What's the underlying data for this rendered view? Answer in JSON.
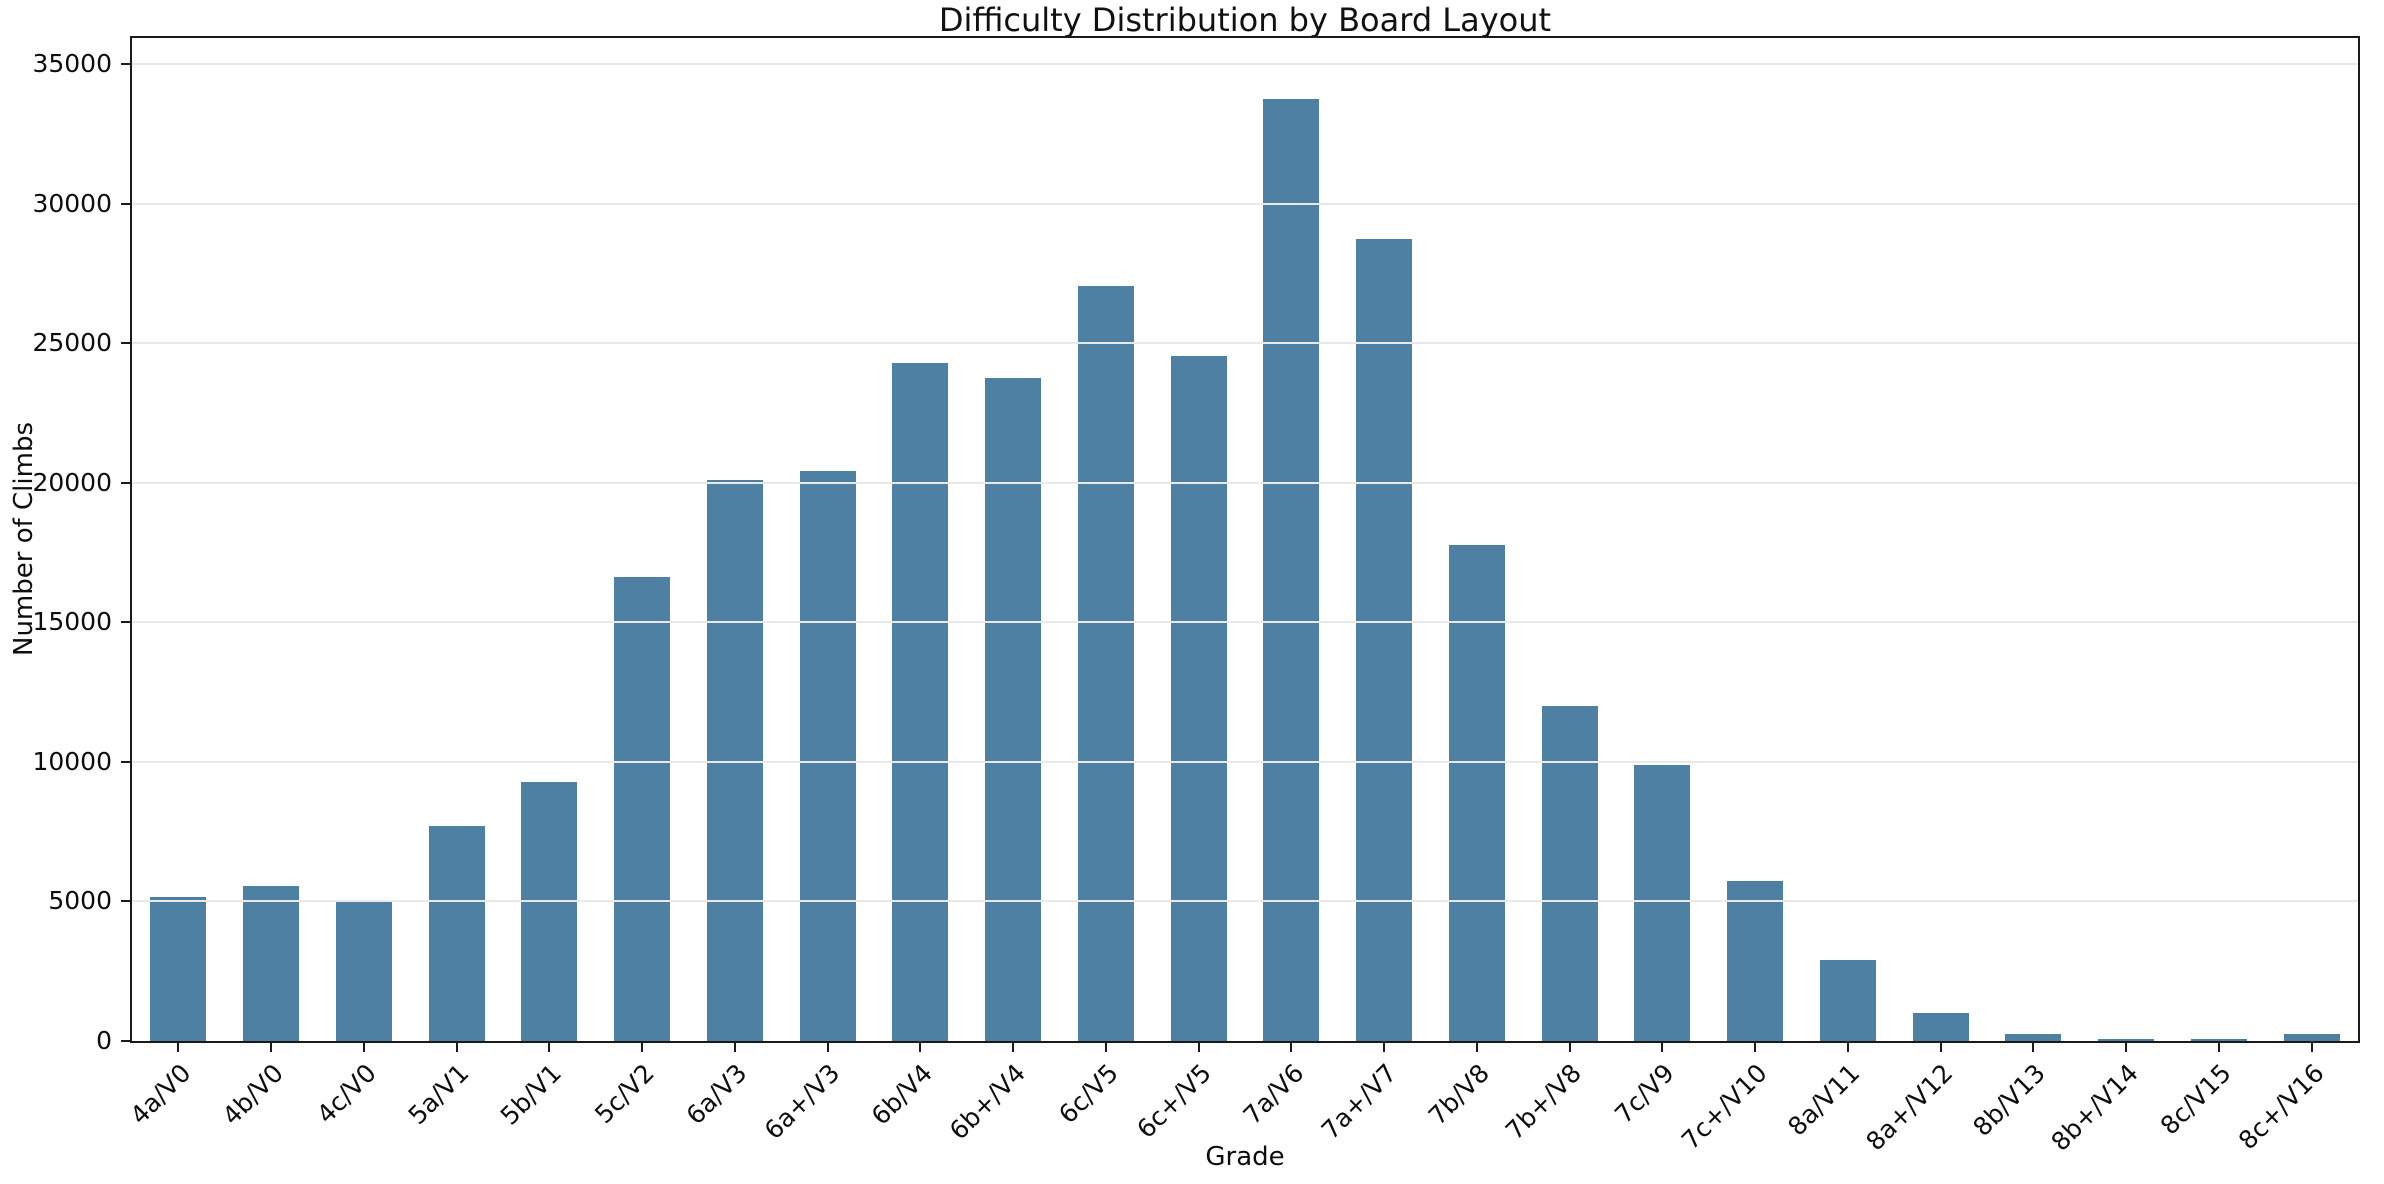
{
  "chart_data": {
    "type": "bar",
    "title": "Difficulty Distribution by Board Layout",
    "xlabel": "Grade",
    "ylabel": "Number of Climbs",
    "categories": [
      "4a/V0",
      "4b/V0",
      "4c/V0",
      "5a/V1",
      "5b/V1",
      "5c/V2",
      "6a/V3",
      "6a+/V3",
      "6b/V4",
      "6b+/V4",
      "6c/V5",
      "6c+/V5",
      "7a/V6",
      "7a+/V7",
      "7b/V8",
      "7b+/V8",
      "7c/V9",
      "7c+/V10",
      "8a/V11",
      "8a+/V12",
      "8b/V13",
      "8b+/V14",
      "8c/V15",
      "8c+/V16"
    ],
    "values": [
      5150,
      5570,
      4980,
      7720,
      9280,
      16620,
      20110,
      20430,
      24300,
      23760,
      27030,
      24550,
      33760,
      28720,
      17770,
      11990,
      9890,
      5750,
      2890,
      1000,
      240,
      70,
      70,
      240
    ],
    "yticks": [
      0,
      5000,
      10000,
      15000,
      20000,
      25000,
      30000,
      35000
    ],
    "ylim": [
      0,
      35930
    ],
    "grid": "horizontal-major, drawn over bars",
    "legend": "none",
    "x_tick_rotation_deg": 45,
    "bar_color": "#4e80a4",
    "grid_color": "#e9e9e9",
    "spine_color": "#1a1a1a",
    "background_color": "#ffffff"
  }
}
